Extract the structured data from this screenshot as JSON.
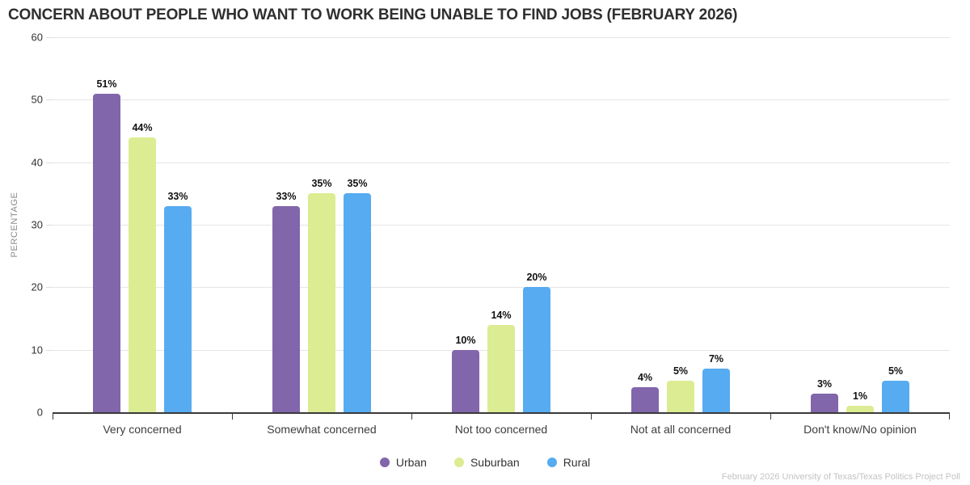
{
  "title": "CONCERN ABOUT PEOPLE WHO WANT TO WORK BEING UNABLE TO FIND JOBS (FEBRUARY 2026)",
  "footer": "February 2026 University of Texas/Texas Politics Project Poll",
  "chart_data": {
    "type": "bar",
    "title": "CONCERN ABOUT PEOPLE WHO WANT TO WORK BEING UNABLE TO FIND JOBS (FEBRUARY 2026)",
    "categories": [
      "Very concerned",
      "Somewhat concerned",
      "Not too concerned",
      "Not at all concerned",
      "Don't know/No opinion"
    ],
    "series": [
      {
        "name": "Urban",
        "color": "#8266ab",
        "values": [
          51,
          33,
          10,
          4,
          3
        ]
      },
      {
        "name": "Suburban",
        "color": "#dcec92",
        "values": [
          44,
          35,
          14,
          5,
          1
        ]
      },
      {
        "name": "Rural",
        "color": "#57abf1",
        "values": [
          33,
          35,
          20,
          7,
          5
        ]
      }
    ],
    "xlabel": "",
    "ylabel": "PERCENTAGE",
    "ylim": [
      0,
      60
    ],
    "yticks": [
      0,
      10,
      20,
      30,
      40,
      50,
      60
    ],
    "value_suffix": "%",
    "grid": true,
    "legend_position": "bottom"
  }
}
